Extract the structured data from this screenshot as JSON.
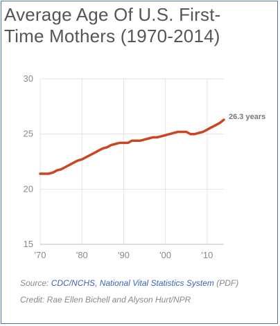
{
  "title_lines": [
    "Average Age Of U.S. First-",
    "Time Mothers (1970-2014)"
  ],
  "source": {
    "prefix": "Source: ",
    "link": "CDC/NCHS, National Vital Statistics System",
    "suffix": " (PDF)"
  },
  "credit": "Credit: Rae Ellen Bichell and Alyson Hurt/NPR",
  "colors": {
    "line": "#cc4522",
    "grid": "#e3e3e3",
    "axis": "#bbbbbb",
    "text": "#888888",
    "frame": "#4a73b5"
  },
  "chart_data": {
    "type": "line",
    "title": "Average Age Of U.S. First-Time Mothers (1970-2014)",
    "xlabel": "",
    "ylabel": "",
    "xlim": [
      1970,
      2014
    ],
    "ylim": [
      15,
      30
    ],
    "x_ticks": [
      1970,
      1980,
      1990,
      2000,
      2010
    ],
    "x_tick_labels": [
      "'70",
      "'80",
      "'90",
      "'00",
      "'10"
    ],
    "y_ticks": [
      15,
      20,
      25,
      30
    ],
    "y_tick_labels": [
      "15",
      "20",
      "25",
      "30"
    ],
    "grid": true,
    "end_label": "26.3 years",
    "series": [
      {
        "x": [
          1970,
          1971,
          1972,
          1973,
          1974,
          1975,
          1976,
          1977,
          1978,
          1979,
          1980,
          1981,
          1982,
          1983,
          1984,
          1985,
          1986,
          1987,
          1988,
          1989,
          1990,
          1991,
          1992,
          1993,
          1994,
          1995,
          1996,
          1997,
          1998,
          1999,
          2000,
          2001,
          2002,
          2003,
          2004,
          2005,
          2006,
          2007,
          2008,
          2009,
          2010,
          2011,
          2012,
          2013,
          2014
        ],
        "values": [
          21.4,
          21.4,
          21.4,
          21.5,
          21.7,
          21.8,
          22.0,
          22.2,
          22.4,
          22.6,
          22.7,
          22.9,
          23.1,
          23.3,
          23.5,
          23.7,
          23.8,
          24.0,
          24.1,
          24.2,
          24.2,
          24.2,
          24.4,
          24.4,
          24.4,
          24.5,
          24.6,
          24.7,
          24.7,
          24.8,
          24.9,
          25.0,
          25.1,
          25.2,
          25.2,
          25.2,
          25.0,
          25.0,
          25.1,
          25.2,
          25.4,
          25.6,
          25.8,
          26.0,
          26.3
        ]
      }
    ]
  }
}
